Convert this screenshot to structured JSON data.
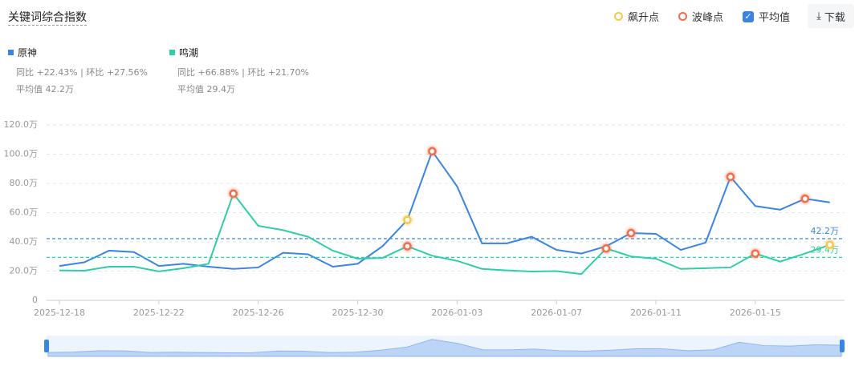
{
  "header": {
    "title": "关键词综合指数",
    "controls": {
      "surge": "飙升点",
      "peak": "波峰点",
      "average": "平均值",
      "download": "下载"
    }
  },
  "chart_data": {
    "type": "line",
    "categories": [
      "2025-12-18",
      null,
      null,
      null,
      "2025-12-22",
      null,
      null,
      null,
      "2025-12-26",
      null,
      null,
      null,
      "2025-12-30",
      null,
      null,
      null,
      "2026-01-03",
      null,
      null,
      null,
      "2026-01-07",
      null,
      null,
      null,
      "2026-01-11",
      null,
      null,
      null,
      "2026-01-15",
      null,
      null,
      null
    ],
    "ylim": [
      0,
      120
    ],
    "yticks": [
      0,
      {
        "value": 20,
        "label": "20.0万"
      },
      {
        "value": 40,
        "label": "40.0万"
      },
      {
        "value": 60,
        "label": "60.0万"
      },
      {
        "value": 80,
        "label": "80.0万"
      },
      {
        "value": 100,
        "label": "100.0万"
      },
      {
        "value": 120,
        "label": "120.0万"
      }
    ],
    "grid": true,
    "series": [
      {
        "name": "原神",
        "color": "#3a85e4",
        "yoy": "同比 +22.43% | 环比 +27.56%",
        "average_text": "平均值 42.2万",
        "average": 42.2,
        "average_label": "42.2万",
        "values": [
          23.5,
          26,
          34,
          33,
          23.5,
          25,
          23,
          21.5,
          22.5,
          32.5,
          31.5,
          23,
          25,
          37,
          55,
          102,
          78,
          39,
          39,
          43.5,
          34.5,
          32,
          37,
          46,
          45.5,
          34.5,
          39.5,
          84.5,
          64.5,
          62,
          69.5,
          67
        ],
        "peaks": [
          15,
          23,
          27,
          30
        ],
        "surges": [
          14
        ]
      },
      {
        "name": "鸣潮",
        "color": "#2ecfa6",
        "yoy": "同比 +66.88% | 环比 +21.70%",
        "average_text": "平均值 29.4万",
        "average": 29.4,
        "average_label": "29.4万",
        "values": [
          20.5,
          20.3,
          23,
          23,
          19.8,
          22,
          25,
          73,
          51,
          48,
          43.5,
          34,
          28.5,
          29,
          37,
          30.5,
          27,
          21.5,
          20.5,
          19.7,
          20,
          18,
          35.5,
          30,
          28.5,
          21.5,
          22,
          22.5,
          32,
          26.5,
          32,
          38
        ],
        "peaks": [
          7,
          14,
          22,
          28
        ],
        "surges": [
          31
        ]
      }
    ]
  }
}
